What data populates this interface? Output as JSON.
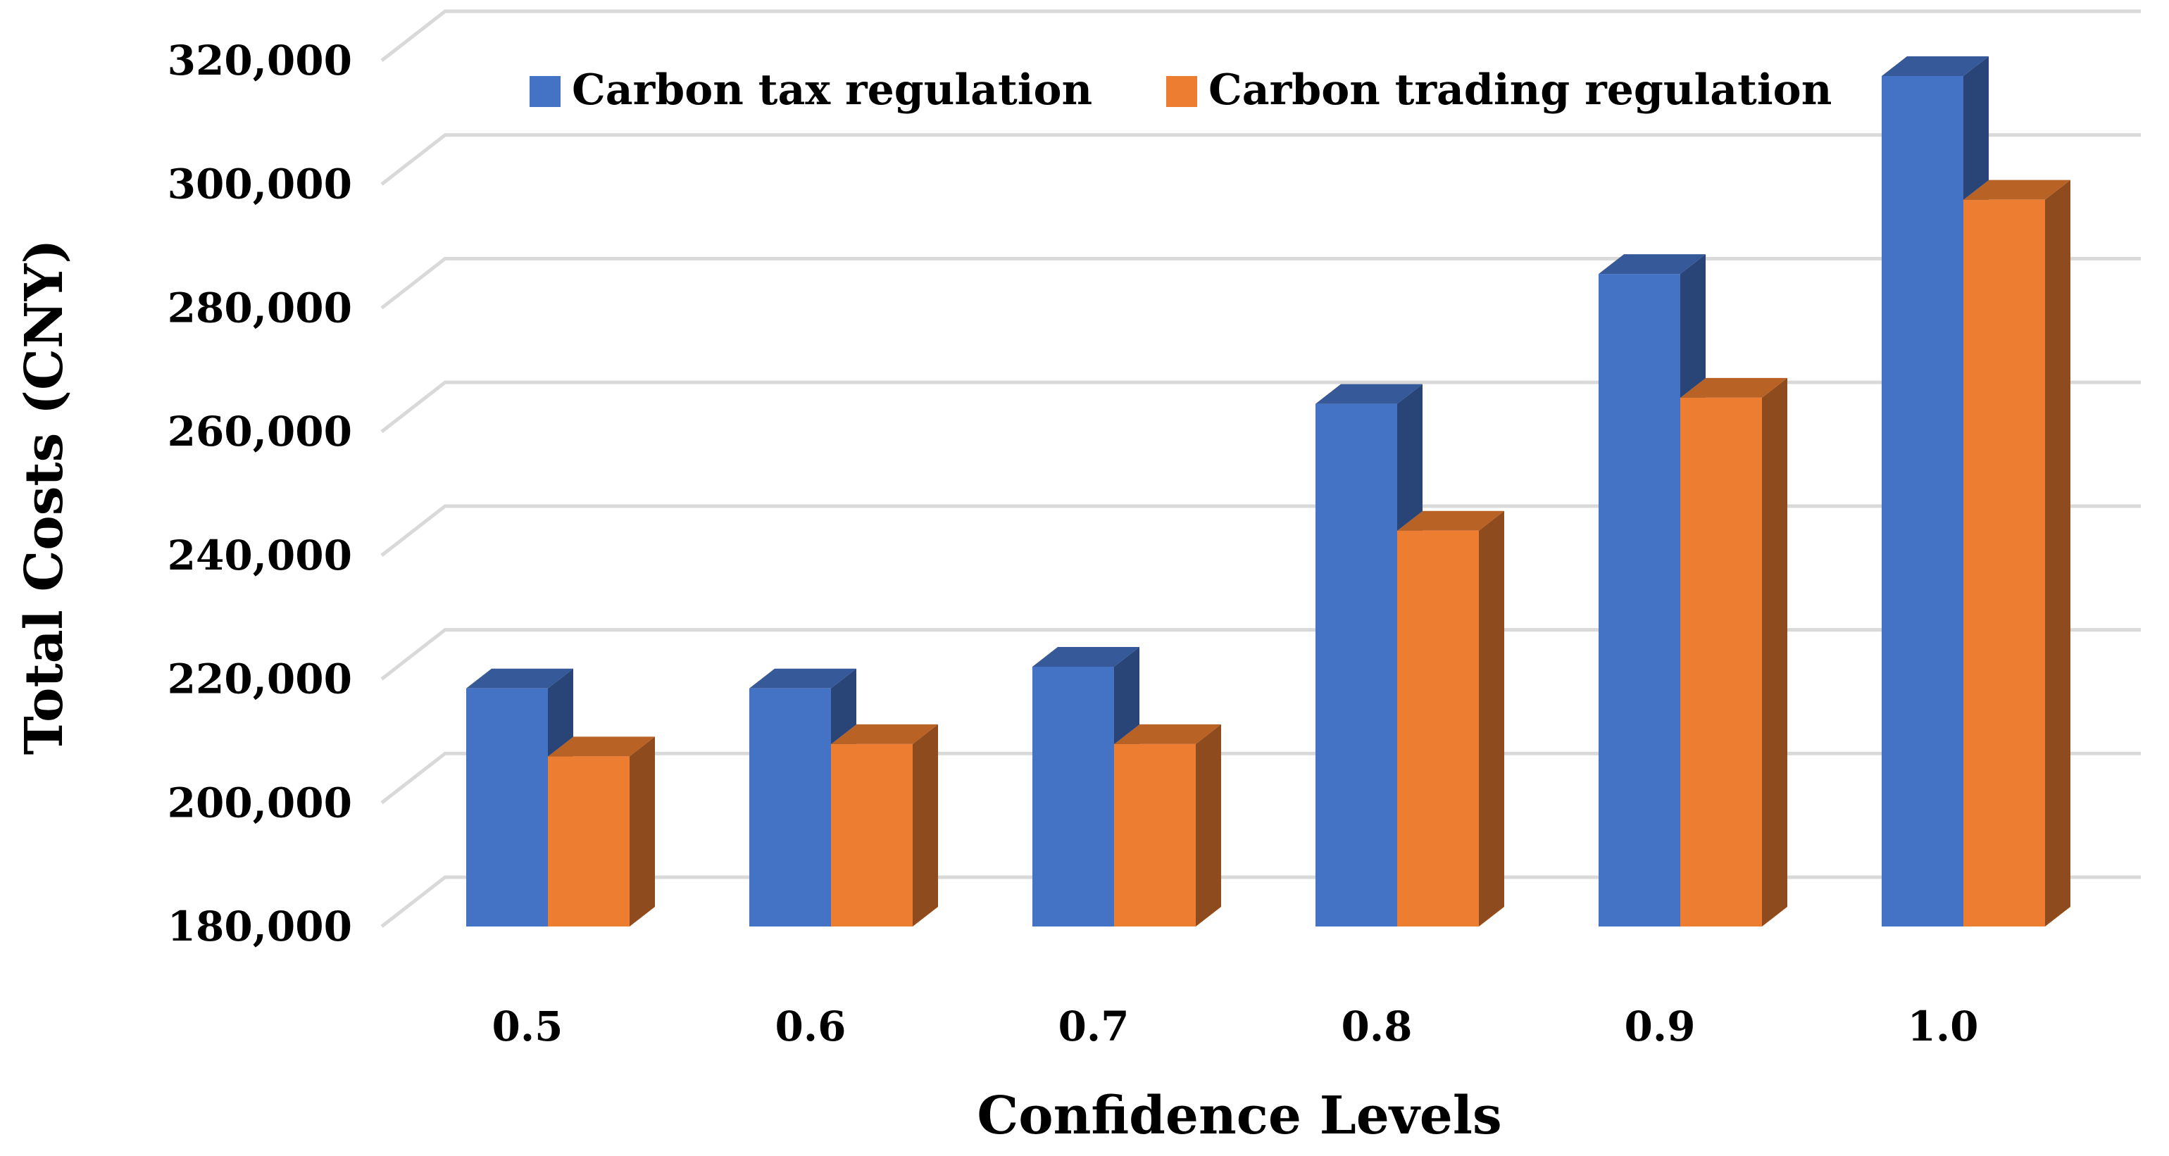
{
  "chart_data": {
    "type": "bar",
    "title": "",
    "xlabel": "Confidence Levels",
    "ylabel": "Total Costs (CNY)",
    "categories": [
      "0.5",
      "0.6",
      "0.7",
      "0.8",
      "0.9",
      "1.0"
    ],
    "series": [
      {
        "name": "Carbon tax regulation",
        "color": "#4472C4",
        "values": [
          218500,
          218500,
          222000,
          264500,
          285500,
          317500
        ]
      },
      {
        "name": "Carbon trading regulation",
        "color": "#ED7D31",
        "values": [
          207500,
          209500,
          209500,
          244000,
          265500,
          297500
        ]
      }
    ],
    "ylim": [
      180000,
      320000
    ],
    "y_ticks": [
      "180,000",
      "200,000",
      "220,000",
      "240,000",
      "260,000",
      "280,000",
      "300,000",
      "320,000"
    ],
    "y_tick_values": [
      180000,
      200000,
      220000,
      240000,
      260000,
      280000,
      300000,
      320000
    ],
    "grid": true,
    "legend_position": "top",
    "style": "3d-clustered-column"
  }
}
